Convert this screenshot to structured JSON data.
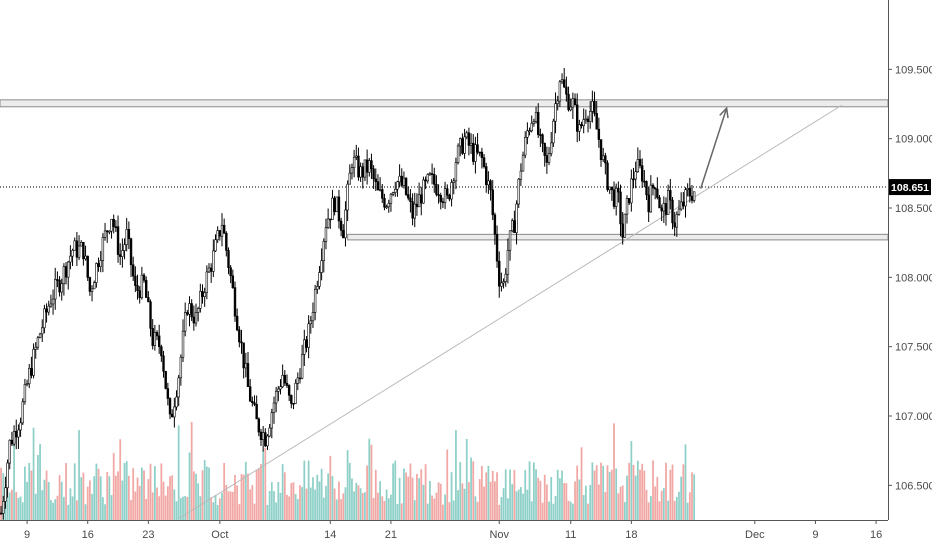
{
  "chart_data": {
    "type": "candlestick",
    "title": "",
    "xlabel": "",
    "ylabel": "",
    "ylim": [
      106.25,
      110.0
    ],
    "price_ticks": [
      "109.500",
      "109.000",
      "108.500",
      "108.000",
      "107.500",
      "107.000",
      "106.500"
    ],
    "price_tick_values": [
      109.5,
      109.0,
      108.5,
      108.0,
      107.5,
      107.0,
      106.5
    ],
    "current_price": "108.651",
    "current_price_value": 108.651,
    "time_ticks": [
      {
        "label": "9",
        "bar": 12
      },
      {
        "label": "16",
        "bar": 40
      },
      {
        "label": "23",
        "bar": 68
      },
      {
        "label": "Oct",
        "bar": 101
      },
      {
        "label": "14",
        "bar": 152
      },
      {
        "label": "21",
        "bar": 180
      },
      {
        "label": "Nov",
        "bar": 230
      },
      {
        "label": "11",
        "bar": 263
      },
      {
        "label": "18",
        "bar": 291
      },
      {
        "label": "Dec",
        "bar": 348
      },
      {
        "label": "9",
        "bar": 376
      },
      {
        "label": "16",
        "bar": 404
      }
    ],
    "bar_count_visible": 410,
    "resistance_zone": [
      109.23,
      109.28
    ],
    "support_zone": [
      108.27,
      108.31
    ],
    "support_zone_start_bar": 160,
    "trendline": {
      "start": {
        "bar": 82,
        "price": 106.26
      },
      "end": {
        "bar": 388,
        "price": 109.24
      }
    },
    "projection_arrow": {
      "start": {
        "bar": 323,
        "price": 108.64
      },
      "end": {
        "bar": 335,
        "price": 109.22
      }
    },
    "price_path": [
      [
        0,
        106.3
      ],
      [
        4,
        106.8
      ],
      [
        9,
        107.0
      ],
      [
        13,
        107.3
      ],
      [
        18,
        107.6
      ],
      [
        23,
        107.85
      ],
      [
        28,
        108.0
      ],
      [
        33,
        108.2
      ],
      [
        38,
        108.2
      ],
      [
        41,
        107.9
      ],
      [
        46,
        108.2
      ],
      [
        51,
        108.45
      ],
      [
        55,
        108.15
      ],
      [
        58,
        108.3
      ],
      [
        62,
        107.9
      ],
      [
        66,
        107.95
      ],
      [
        70,
        107.55
      ],
      [
        74,
        107.5
      ],
      [
        78,
        106.95
      ],
      [
        82,
        107.3
      ],
      [
        86,
        107.8
      ],
      [
        90,
        107.7
      ],
      [
        94,
        107.95
      ],
      [
        98,
        108.15
      ],
      [
        102,
        108.4
      ],
      [
        106,
        108.0
      ],
      [
        110,
        107.6
      ],
      [
        114,
        107.2
      ],
      [
        118,
        106.95
      ],
      [
        122,
        106.85
      ],
      [
        126,
        107.1
      ],
      [
        130,
        107.3
      ],
      [
        134,
        107.05
      ],
      [
        138,
        107.35
      ],
      [
        142,
        107.6
      ],
      [
        146,
        108.0
      ],
      [
        150,
        108.4
      ],
      [
        154,
        108.55
      ],
      [
        158,
        108.35
      ],
      [
        162,
        108.85
      ],
      [
        166,
        108.75
      ],
      [
        170,
        108.8
      ],
      [
        174,
        108.6
      ],
      [
        178,
        108.55
      ],
      [
        182,
        108.7
      ],
      [
        186,
        108.65
      ],
      [
        190,
        108.45
      ],
      [
        194,
        108.6
      ],
      [
        198,
        108.7
      ],
      [
        202,
        108.65
      ],
      [
        206,
        108.55
      ],
      [
        210,
        108.85
      ],
      [
        214,
        109.0
      ],
      [
        218,
        108.9
      ],
      [
        222,
        108.85
      ],
      [
        226,
        108.6
      ],
      [
        228,
        108.3
      ],
      [
        230,
        108.0
      ],
      [
        232,
        107.95
      ],
      [
        234,
        108.2
      ],
      [
        237,
        108.4
      ],
      [
        240,
        108.8
      ],
      [
        243,
        109.05
      ],
      [
        246,
        109.2
      ],
      [
        249,
        108.95
      ],
      [
        252,
        108.8
      ],
      [
        255,
        109.15
      ],
      [
        258,
        109.45
      ],
      [
        261,
        109.3
      ],
      [
        264,
        109.25
      ],
      [
        267,
        109.05
      ],
      [
        270,
        109.2
      ],
      [
        273,
        109.2
      ],
      [
        276,
        109.0
      ],
      [
        279,
        108.75
      ],
      [
        282,
        108.6
      ],
      [
        285,
        108.55
      ],
      [
        287,
        108.3
      ],
      [
        290,
        108.6
      ],
      [
        293,
        108.8
      ],
      [
        296,
        108.75
      ],
      [
        299,
        108.55
      ],
      [
        302,
        108.7
      ],
      [
        305,
        108.45
      ],
      [
        308,
        108.55
      ],
      [
        311,
        108.4
      ],
      [
        314,
        108.5
      ],
      [
        317,
        108.6
      ],
      [
        320,
        108.62
      ]
    ],
    "candle_color": "#000000",
    "volume_up_color": "#8ed0c8",
    "volume_down_color": "#f1a7a4",
    "zone_fill": "#ececec",
    "zone_border": "#8a8a8a",
    "trendline_color": "#b9b9b9",
    "arrow_color": "#666666"
  }
}
